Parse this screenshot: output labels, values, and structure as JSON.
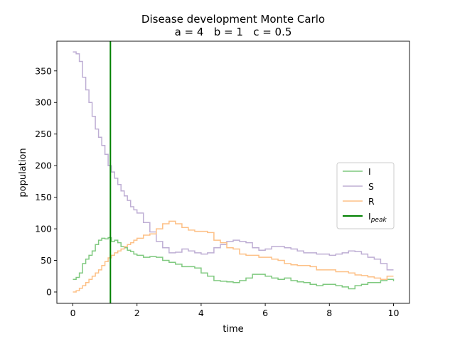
{
  "chart_data": {
    "type": "line",
    "title": "Disease development Monte Carlo",
    "subtitle": "a = 4   b = 1   c = 0.5",
    "xlabel": "time",
    "ylabel": "population",
    "xlim": [
      -0.5,
      10.5
    ],
    "ylim": [
      -18,
      397
    ],
    "xticks": [
      0,
      2,
      4,
      6,
      8,
      10
    ],
    "yticks": [
      0,
      50,
      100,
      150,
      200,
      250,
      300,
      350
    ],
    "grid": false,
    "legend_position": "right",
    "colors": {
      "I": "#7fc97f",
      "S": "#beaed4",
      "R": "#fdc086",
      "I_peak": "#008000"
    },
    "series": [
      {
        "name": "I",
        "x": [
          0,
          0.1,
          0.2,
          0.3,
          0.4,
          0.5,
          0.6,
          0.7,
          0.8,
          0.9,
          1.0,
          1.1,
          1.2,
          1.3,
          1.4,
          1.5,
          1.6,
          1.7,
          1.8,
          1.9,
          2.0,
          2.2,
          2.4,
          2.6,
          2.8,
          3.0,
          3.2,
          3.4,
          3.6,
          3.8,
          4.0,
          4.2,
          4.4,
          4.6,
          4.8,
          5.0,
          5.2,
          5.4,
          5.6,
          5.8,
          6.0,
          6.2,
          6.4,
          6.6,
          6.8,
          7.0,
          7.2,
          7.4,
          7.6,
          7.8,
          8.0,
          8.2,
          8.4,
          8.6,
          8.8,
          9.0,
          9.2,
          9.4,
          9.6,
          9.8,
          10.0
        ],
        "y": [
          20,
          23,
          30,
          45,
          52,
          58,
          65,
          75,
          82,
          85,
          84,
          86,
          80,
          82,
          78,
          72,
          70,
          66,
          64,
          60,
          58,
          55,
          56,
          55,
          50,
          47,
          44,
          40,
          40,
          38,
          30,
          25,
          18,
          17,
          16,
          15,
          18,
          22,
          28,
          28,
          25,
          22,
          20,
          22,
          18,
          16,
          15,
          12,
          10,
          12,
          12,
          10,
          8,
          5,
          10,
          12,
          15,
          15,
          18,
          20,
          17
        ]
      },
      {
        "name": "S",
        "x": [
          0,
          0.1,
          0.2,
          0.3,
          0.4,
          0.5,
          0.6,
          0.7,
          0.8,
          0.9,
          1.0,
          1.1,
          1.2,
          1.3,
          1.4,
          1.5,
          1.6,
          1.7,
          1.8,
          1.9,
          2.0,
          2.2,
          2.4,
          2.6,
          2.8,
          3.0,
          3.2,
          3.4,
          3.6,
          3.8,
          4.0,
          4.2,
          4.4,
          4.6,
          4.8,
          5.0,
          5.2,
          5.4,
          5.6,
          5.8,
          6.0,
          6.2,
          6.4,
          6.6,
          6.8,
          7.0,
          7.2,
          7.4,
          7.6,
          7.8,
          8.0,
          8.2,
          8.4,
          8.6,
          8.8,
          9.0,
          9.2,
          9.4,
          9.6,
          9.8,
          10.0
        ],
        "y": [
          380,
          377,
          365,
          340,
          320,
          300,
          278,
          258,
          245,
          232,
          218,
          200,
          190,
          180,
          170,
          160,
          152,
          145,
          135,
          130,
          125,
          110,
          95,
          80,
          70,
          62,
          63,
          68,
          65,
          62,
          60,
          62,
          70,
          75,
          80,
          82,
          80,
          78,
          70,
          66,
          68,
          72,
          72,
          70,
          68,
          65,
          62,
          62,
          60,
          60,
          58,
          60,
          62,
          65,
          64,
          60,
          55,
          52,
          45,
          35,
          35
        ]
      },
      {
        "name": "R",
        "x": [
          0,
          0.1,
          0.2,
          0.3,
          0.4,
          0.5,
          0.6,
          0.7,
          0.8,
          0.9,
          1.0,
          1.1,
          1.2,
          1.3,
          1.4,
          1.5,
          1.6,
          1.7,
          1.8,
          1.9,
          2.0,
          2.2,
          2.4,
          2.6,
          2.8,
          3.0,
          3.2,
          3.4,
          3.6,
          3.8,
          4.0,
          4.2,
          4.4,
          4.6,
          4.8,
          5.0,
          5.2,
          5.4,
          5.6,
          5.8,
          6.0,
          6.2,
          6.4,
          6.6,
          6.8,
          7.0,
          7.2,
          7.4,
          7.6,
          7.8,
          8.0,
          8.2,
          8.4,
          8.6,
          8.8,
          9.0,
          9.2,
          9.4,
          9.6,
          9.8,
          10.0
        ],
        "y": [
          0,
          2,
          6,
          10,
          15,
          20,
          25,
          30,
          35,
          42,
          48,
          54,
          58,
          62,
          65,
          68,
          72,
          75,
          78,
          82,
          85,
          90,
          92,
          100,
          108,
          112,
          108,
          102,
          98,
          96,
          96,
          94,
          82,
          78,
          70,
          68,
          60,
          58,
          58,
          55,
          55,
          52,
          50,
          45,
          43,
          42,
          42,
          40,
          35,
          35,
          35,
          32,
          32,
          30,
          27,
          26,
          24,
          22,
          20,
          25,
          25
        ]
      }
    ],
    "vline": {
      "name": "I_peak",
      "legend_label": "I",
      "legend_subscript": "peak",
      "x": 1.17
    }
  }
}
